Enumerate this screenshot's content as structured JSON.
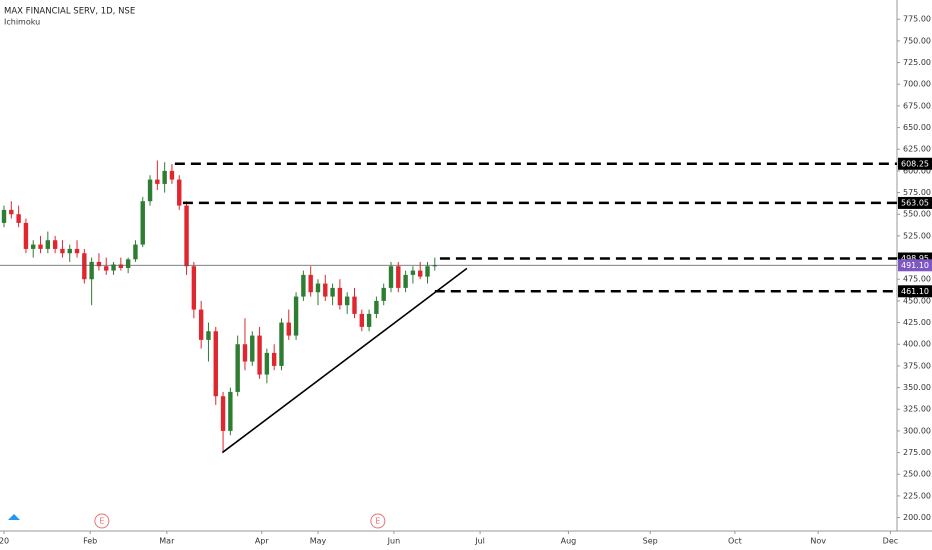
{
  "chart_data": {
    "type": "candlestick",
    "title": "MAX FINANCIAL SERV, 1D, NSE",
    "subtitle": "Ichimoku",
    "up_color": "#2e7d32",
    "down_color": "#e0262f",
    "x": [
      0,
      1,
      2,
      3,
      4,
      5,
      6,
      7,
      8,
      9,
      10,
      11,
      12,
      13,
      14,
      15,
      16,
      17,
      18,
      19,
      20,
      21,
      22,
      23,
      24,
      25,
      26,
      27,
      28,
      29,
      30,
      31,
      32,
      33,
      34,
      35,
      36,
      37,
      38,
      39,
      40,
      41,
      42,
      43,
      44,
      45,
      46,
      47,
      48,
      49,
      50,
      51,
      52,
      53,
      54,
      55,
      56,
      57,
      58,
      59
    ],
    "open": [
      540,
      555,
      550,
      540,
      510,
      515,
      510,
      520,
      510,
      505,
      510,
      505,
      475,
      495,
      490,
      485,
      492,
      488,
      498,
      515,
      565,
      590,
      585,
      600,
      590,
      560,
      490,
      440,
      405,
      415,
      340,
      300,
      345,
      400,
      380,
      410,
      365,
      390,
      375,
      425,
      410,
      455,
      480,
      460,
      470,
      455,
      465,
      445,
      455,
      435,
      420,
      435,
      450,
      465,
      490,
      465,
      480,
      485,
      478,
      490
    ],
    "high": [
      560,
      565,
      560,
      545,
      520,
      525,
      530,
      525,
      520,
      515,
      520,
      510,
      500,
      505,
      500,
      495,
      500,
      500,
      520,
      570,
      595,
      612,
      610,
      608,
      595,
      565,
      495,
      450,
      425,
      420,
      345,
      350,
      410,
      430,
      415,
      420,
      395,
      400,
      430,
      440,
      460,
      485,
      490,
      475,
      480,
      470,
      475,
      460,
      465,
      440,
      440,
      455,
      470,
      495,
      495,
      485,
      490,
      495,
      495,
      500
    ],
    "low": [
      535,
      545,
      535,
      505,
      500,
      505,
      505,
      505,
      500,
      495,
      500,
      470,
      445,
      485,
      480,
      480,
      485,
      482,
      495,
      512,
      560,
      578,
      575,
      585,
      555,
      480,
      430,
      395,
      380,
      330,
      277,
      295,
      340,
      370,
      375,
      360,
      355,
      370,
      370,
      405,
      405,
      450,
      455,
      445,
      450,
      445,
      440,
      435,
      430,
      415,
      415,
      430,
      445,
      460,
      460,
      460,
      470,
      475,
      470,
      485
    ],
    "close": [
      555,
      550,
      540,
      510,
      515,
      510,
      520,
      510,
      505,
      510,
      505,
      475,
      495,
      490,
      485,
      492,
      488,
      498,
      515,
      565,
      590,
      585,
      600,
      590,
      560,
      490,
      440,
      405,
      415,
      340,
      300,
      345,
      400,
      380,
      410,
      365,
      390,
      375,
      425,
      410,
      455,
      480,
      460,
      470,
      455,
      465,
      445,
      455,
      435,
      420,
      435,
      450,
      465,
      490,
      465,
      480,
      485,
      478,
      490,
      491.1
    ],
    "xlim": [
      -0.55,
      122.3
    ],
    "xticks": [
      {
        "value": 0,
        "label": "20"
      },
      {
        "value": 11.8,
        "label": "Feb"
      },
      {
        "value": 22.3,
        "label": "Mar"
      },
      {
        "value": 35.3,
        "label": "Apr"
      },
      {
        "value": 43,
        "label": "May"
      },
      {
        "value": 53.4,
        "label": "Jun"
      },
      {
        "value": 65.2,
        "label": "Jul"
      },
      {
        "value": 77.3,
        "label": "Aug"
      },
      {
        "value": 88.5,
        "label": "Sep"
      },
      {
        "value": 100.1,
        "label": "Oct"
      },
      {
        "value": 111.5,
        "label": "Nov"
      },
      {
        "value": 121.4,
        "label": "Dec"
      }
    ],
    "ylim": [
      184.5,
      797.2
    ],
    "yticks": [
      {
        "value": 775,
        "label": "775.00"
      },
      {
        "value": 750,
        "label": "750.00"
      },
      {
        "value": 725,
        "label": "725.00"
      },
      {
        "value": 700,
        "label": "700.00"
      },
      {
        "value": 675,
        "label": "675.00"
      },
      {
        "value": 650,
        "label": "650.00"
      },
      {
        "value": 625,
        "label": "625.00"
      },
      {
        "value": 600,
        "label": "600.00"
      },
      {
        "value": 575,
        "label": "575.00"
      },
      {
        "value": 550,
        "label": "550.00"
      },
      {
        "value": 525,
        "label": "525.00"
      },
      {
        "value": 500,
        "label": "500.00"
      },
      {
        "value": 475,
        "label": "475.00"
      },
      {
        "value": 450,
        "label": "450.00"
      },
      {
        "value": 425,
        "label": "425.00"
      },
      {
        "value": 400,
        "label": "400.00"
      },
      {
        "value": 375,
        "label": "375.00"
      },
      {
        "value": 350,
        "label": "350.00"
      },
      {
        "value": 325,
        "label": "325.00"
      },
      {
        "value": 300,
        "label": "300.00"
      },
      {
        "value": 275,
        "label": "275.00"
      },
      {
        "value": 250,
        "label": "250.00"
      },
      {
        "value": 225,
        "label": "225.00"
      },
      {
        "value": 200,
        "label": "200.00"
      }
    ],
    "levels": [
      {
        "value": 608.25,
        "from": 23.4,
        "dashed": true
      },
      {
        "value": 563.05,
        "from": 24.5,
        "dashed": true
      },
      {
        "value": 498.95,
        "from": 59.7,
        "dashed": true
      },
      {
        "value": {
          "value": 491.1,
          "label": "491.10"
        },
        "from": -0.55,
        "dashed": false,
        "color": "#7e57c2"
      },
      {
        "value": {
          "value": 461.1,
          "label": "461.10"
        },
        "from": 59,
        "dashed": true
      }
    ],
    "trendline": {
      "x": [
        29.9,
        63.4
      ],
      "y": [
        275,
        487.5
      ]
    },
    "events": [
      {
        "label": "E",
        "x": 13.4
      },
      {
        "label": "E",
        "x": 51.2
      }
    ]
  }
}
